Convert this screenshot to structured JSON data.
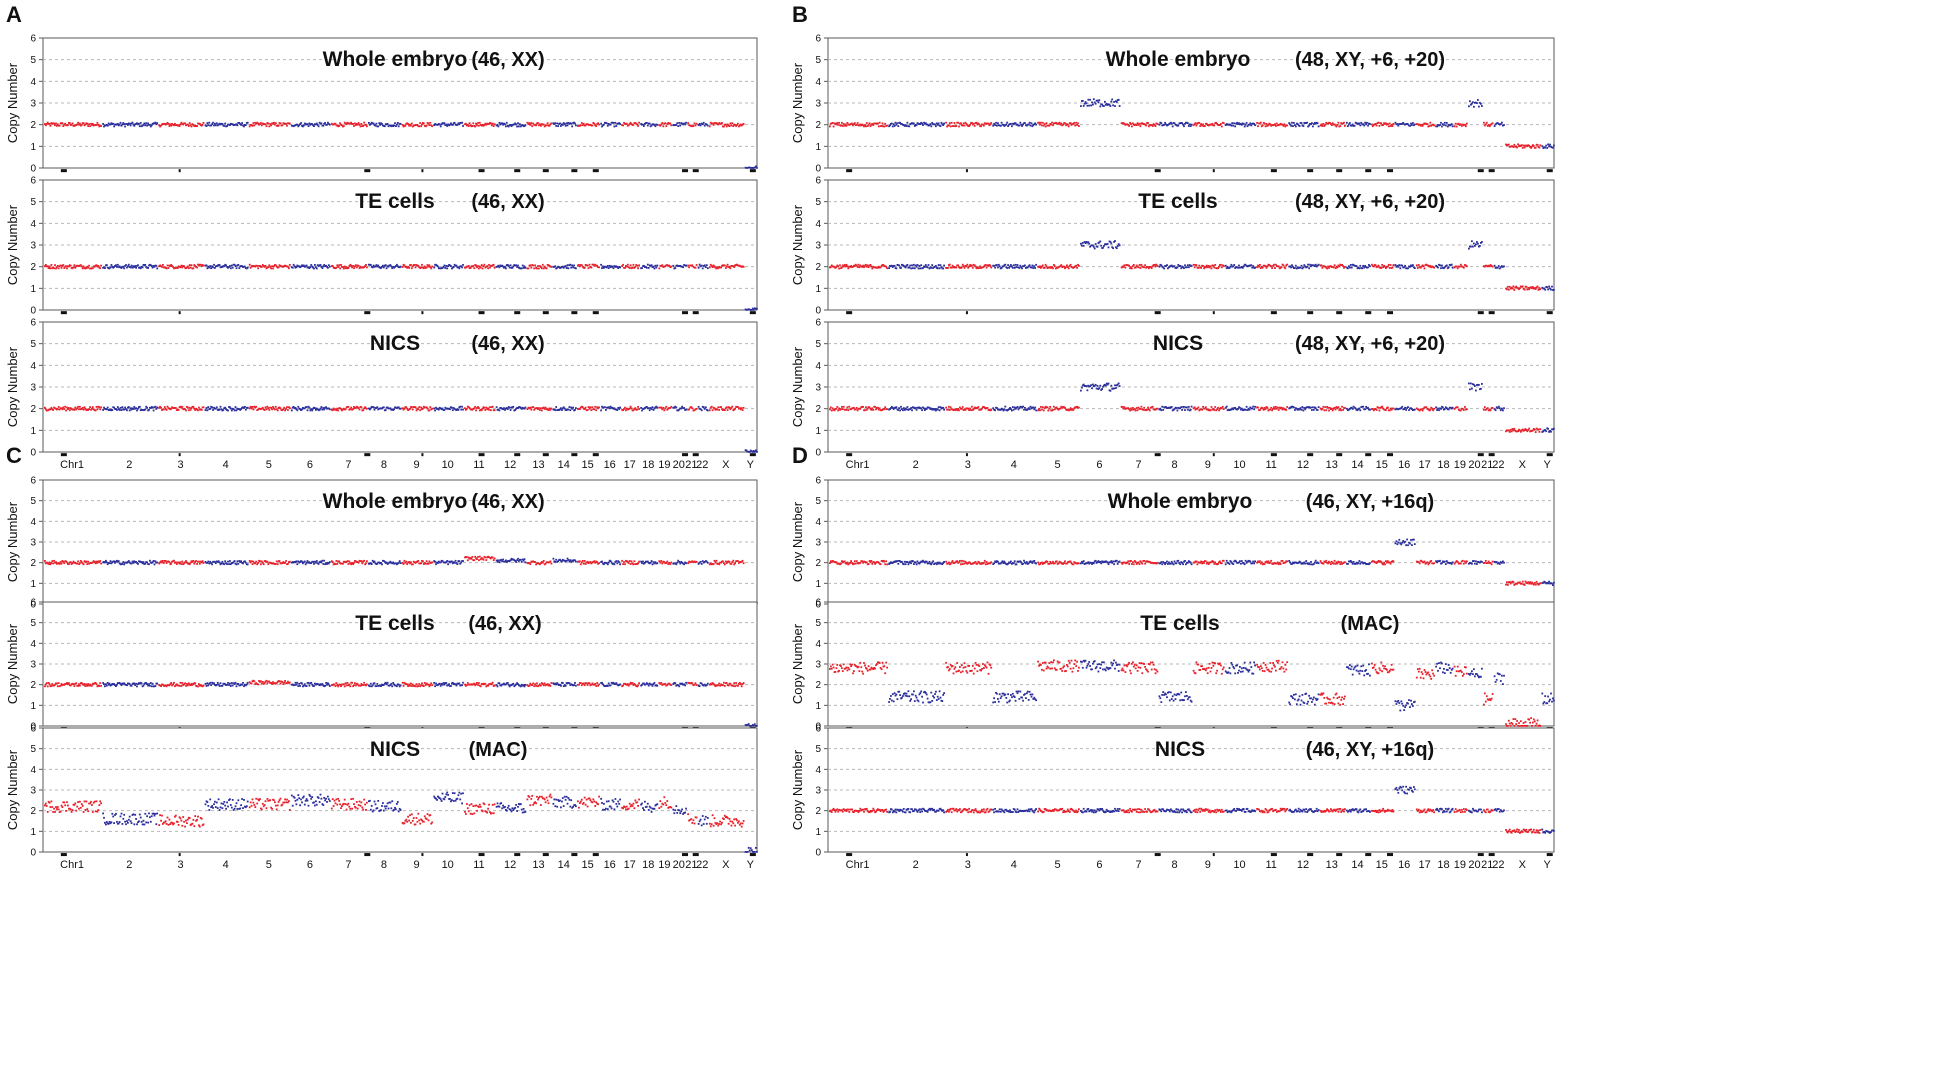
{
  "figure": {
    "colors": {
      "red": "#e8202a",
      "blue": "#2b2f9c",
      "grid": "#b8b8b8",
      "frame": "#5a5a5a",
      "text": "#111111"
    },
    "chart_data": [
      {
        "panel": "A",
        "type": "scatter",
        "ylabel": "Copy Number",
        "ylim": [
          0,
          6
        ],
        "yticks": [
          "0",
          "1",
          "2",
          "3",
          "4",
          "5",
          "6"
        ],
        "chromosomes": [
          "Chr1",
          "2",
          "3",
          "4",
          "5",
          "6",
          "7",
          "8",
          "9",
          "10",
          "11",
          "12",
          "13",
          "14",
          "15",
          "16",
          "17",
          "18",
          "19",
          "20",
          "21",
          "22",
          "X",
          "Y"
        ],
        "series": [
          {
            "title": "Whole embryo",
            "karyotype": "(46, XX)",
            "copy_numbers": [
              2,
              2,
              2,
              2,
              2,
              2,
              2,
              2,
              2,
              2,
              2,
              2,
              2,
              2,
              2,
              2,
              2,
              2,
              2,
              2,
              2,
              2,
              2,
              0
            ]
          },
          {
            "title": "TE cells",
            "karyotype": "(46, XX)",
            "copy_numbers": [
              2,
              2,
              2,
              2,
              2,
              2,
              2,
              2,
              2,
              2,
              2,
              2,
              2,
              2,
              2,
              2,
              2,
              2,
              2,
              2,
              2,
              2,
              2,
              0
            ]
          },
          {
            "title": "NICS",
            "karyotype": "(46, XX)",
            "copy_numbers": [
              2,
              2,
              2,
              2,
              2,
              2,
              2,
              2,
              2,
              2,
              2,
              2,
              2,
              2,
              2,
              2,
              2,
              2,
              2,
              2,
              2,
              2,
              2,
              0
            ]
          }
        ]
      },
      {
        "panel": "B",
        "type": "scatter",
        "ylabel": "Copy Number",
        "ylim": [
          0,
          6
        ],
        "yticks": [
          "0",
          "1",
          "2",
          "3",
          "4",
          "5",
          "6"
        ],
        "chromosomes": [
          "Chr1",
          "2",
          "3",
          "4",
          "5",
          "6",
          "7",
          "8",
          "9",
          "10",
          "11",
          "12",
          "13",
          "14",
          "15",
          "16",
          "17",
          "18",
          "19",
          "20",
          "21",
          "22",
          "X",
          "Y"
        ],
        "series": [
          {
            "title": "Whole embryo",
            "karyotype": "(48, XY, +6, +20)",
            "copy_numbers": [
              2,
              2,
              2,
              2,
              2,
              3,
              2,
              2,
              2,
              2,
              2,
              2,
              2,
              2,
              2,
              2,
              2,
              2,
              2,
              3,
              2,
              2,
              1,
              1
            ]
          },
          {
            "title": "TE cells",
            "karyotype": "(48, XY, +6, +20)",
            "copy_numbers": [
              2,
              2,
              2,
              2,
              2,
              3,
              2,
              2,
              2,
              2,
              2,
              2,
              2,
              2,
              2,
              2,
              2,
              2,
              2,
              3,
              2,
              2,
              1,
              1
            ]
          },
          {
            "title": "NICS",
            "karyotype": "(48, XY, +6, +20)",
            "copy_numbers": [
              2,
              2,
              2,
              2,
              2,
              3,
              2,
              2,
              2,
              2,
              2,
              2,
              2,
              2,
              2,
              2,
              2,
              2,
              2,
              3,
              2,
              2,
              1,
              1
            ]
          }
        ]
      },
      {
        "panel": "C",
        "type": "scatter",
        "ylabel": "Copy Number",
        "ylim": [
          0,
          6
        ],
        "yticks": [
          "0",
          "1",
          "2",
          "3",
          "4",
          "5",
          "6"
        ],
        "chromosomes": [
          "Chr1",
          "2",
          "3",
          "4",
          "5",
          "6",
          "7",
          "8",
          "9",
          "10",
          "11",
          "12",
          "13",
          "14",
          "15",
          "16",
          "17",
          "18",
          "19",
          "20",
          "21",
          "22",
          "X",
          "Y"
        ],
        "series": [
          {
            "title": "Whole embryo",
            "karyotype": "(46, XX)",
            "copy_numbers": [
              2,
              2,
              2,
              2,
              2,
              2,
              2,
              2,
              2,
              2,
              2.2,
              2.1,
              2,
              2.1,
              2,
              2,
              2,
              2,
              2,
              2,
              2,
              2,
              2,
              0
            ]
          },
          {
            "title": "TE cells",
            "karyotype": "(46, XX)",
            "copy_numbers": [
              2,
              2,
              2,
              2,
              2.1,
              2,
              2,
              2,
              2,
              2,
              2,
              2,
              2,
              2,
              2,
              2,
              2,
              2,
              2,
              2,
              2,
              2,
              2,
              0
            ]
          },
          {
            "title": "NICS",
            "karyotype": "(MAC)",
            "copy_numbers": [
              2.2,
              1.6,
              1.5,
              2.3,
              2.3,
              2.5,
              2.3,
              2.2,
              1.6,
              2.6,
              2.1,
              2.1,
              2.5,
              2.4,
              2.4,
              2.3,
              2.3,
              2.2,
              2.4,
              2.1,
              1.6,
              1.5,
              1.5,
              0
            ]
          }
        ]
      },
      {
        "panel": "D",
        "type": "scatter",
        "ylabel": "Copy Number",
        "ylim": [
          0,
          6
        ],
        "yticks": [
          "0",
          "1",
          "2",
          "3",
          "4",
          "5",
          "6"
        ],
        "chromosomes": [
          "Chr1",
          "2",
          "3",
          "4",
          "5",
          "6",
          "7",
          "8",
          "9",
          "10",
          "11",
          "12",
          "13",
          "14",
          "15",
          "16",
          "17",
          "18",
          "19",
          "20",
          "21",
          "22",
          "X",
          "Y"
        ],
        "series": [
          {
            "title": "Whole embryo",
            "karyotype": "(46, XY, +16q)",
            "copy_numbers": [
              2,
              2,
              2,
              2,
              2,
              2,
              2,
              2,
              2,
              2,
              2,
              2,
              2,
              2,
              2,
              3,
              2,
              2,
              2,
              2,
              2,
              2,
              1,
              1
            ]
          },
          {
            "title": "TE cells",
            "karyotype": "(MAC)",
            "copy_numbers": [
              2.8,
              1.4,
              2.8,
              1.4,
              2.9,
              2.9,
              2.8,
              1.4,
              2.8,
              2.8,
              2.9,
              1.3,
              1.3,
              2.7,
              2.8,
              1.0,
              2.5,
              2.8,
              2.6,
              2.5,
              1.3,
              2.3,
              0.1,
              1.3
            ]
          },
          {
            "title": "NICS",
            "karyotype": "(46, XY, +16q)",
            "copy_numbers": [
              2,
              2,
              2,
              2,
              2,
              2,
              2,
              2,
              2,
              2,
              2,
              2,
              2,
              2,
              2,
              3,
              2,
              2,
              2,
              2,
              2,
              2,
              1,
              1
            ]
          }
        ]
      }
    ]
  }
}
